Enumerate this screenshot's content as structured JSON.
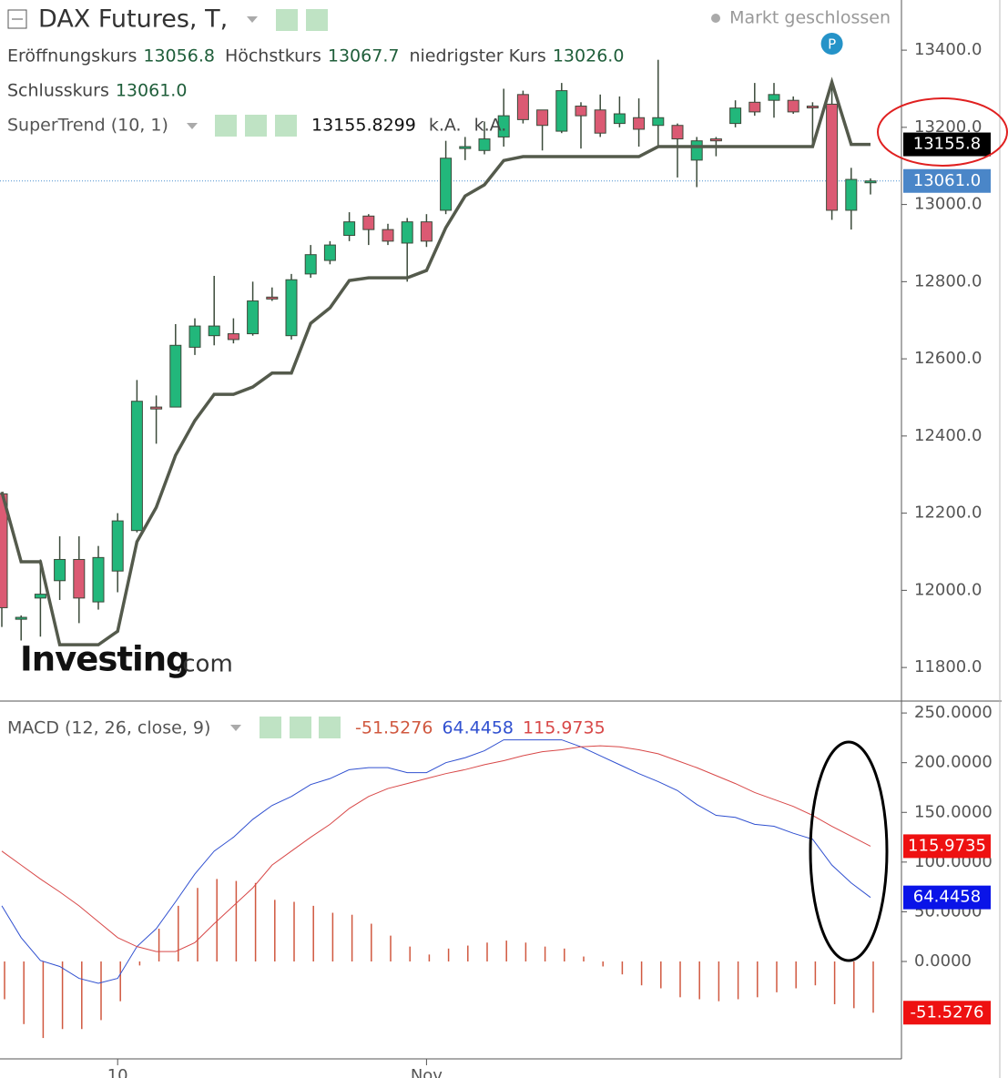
{
  "chart_data": [
    {
      "type": "candlestick",
      "title": "DAX Futures, T,",
      "status": "Markt geschlossen",
      "info": [
        {
          "name": "Eröffnungskurs",
          "value": "13056.8"
        },
        {
          "name": "Höchstkurs",
          "value": "13067.7"
        },
        {
          "name": "niedrigster Kurs",
          "value": "13026.0"
        },
        {
          "name": "Schlusskurs",
          "value": "13061.0"
        }
      ],
      "last_price_label": "13061.0",
      "marker": "P",
      "logo": "Investing",
      "logo_suffix": ".com",
      "categories": [
        null,
        null,
        null,
        null,
        null,
        null,
        "10",
        null,
        null,
        null,
        null,
        null,
        null,
        null,
        null,
        null,
        null,
        null,
        null,
        null,
        null,
        null,
        "Nov",
        null,
        null,
        null,
        null,
        null,
        null,
        null,
        null,
        null,
        null,
        null,
        null,
        null,
        null,
        null,
        null,
        null,
        null,
        null,
        null,
        null,
        null,
        null
      ],
      "open": [
        12250,
        11925,
        11980,
        12025,
        12080,
        11970,
        12050,
        12155,
        12475,
        12475,
        12630,
        12660,
        12665,
        12665,
        12760,
        12660,
        12820,
        12855,
        12920,
        12970,
        12935,
        12900,
        12955,
        12985,
        13145,
        13140,
        13175,
        13285,
        13245,
        13190,
        13255,
        13245,
        13210,
        13225,
        13205,
        13205,
        13115,
        13170,
        13210,
        13265,
        13270,
        13270,
        13255,
        13260,
        12985,
        13056.8
      ],
      "high": [
        12255,
        11935,
        12080,
        12140,
        12140,
        12115,
        12200,
        12545,
        12505,
        12690,
        12705,
        12815,
        12705,
        12800,
        12785,
        12820,
        12895,
        12905,
        12980,
        12975,
        12950,
        12965,
        12975,
        13165,
        13175,
        13215,
        13300,
        13295,
        13245,
        13315,
        13265,
        13285,
        13280,
        13275,
        13375,
        13210,
        13175,
        13175,
        13270,
        13315,
        13315,
        13280,
        13265,
        13320,
        13095,
        13067.7
      ],
      "low": [
        11905,
        11870,
        11880,
        11975,
        11915,
        11950,
        11995,
        12150,
        12380,
        12475,
        12610,
        12635,
        12640,
        12660,
        12750,
        12650,
        12810,
        12845,
        12905,
        12895,
        12895,
        12800,
        12890,
        12975,
        13115,
        13130,
        13150,
        13210,
        13140,
        13185,
        13145,
        13175,
        13200,
        13150,
        13150,
        13070,
        13045,
        13125,
        13200,
        13230,
        13225,
        13235,
        13155,
        12960,
        12935,
        13026
      ],
      "close": [
        11955,
        11930,
        11990,
        12080,
        11980,
        12085,
        12180,
        12490,
        12470,
        12635,
        12685,
        12685,
        12650,
        12750,
        12755,
        12805,
        12870,
        12895,
        12955,
        12935,
        12905,
        12955,
        12905,
        13120,
        13150,
        13170,
        13230,
        13220,
        13205,
        13295,
        13230,
        13185,
        13235,
        13195,
        13225,
        13170,
        13165,
        13165,
        13250,
        13240,
        13285,
        13240,
        13253,
        12985,
        13065,
        13061
      ],
      "up_color": "#22b77b",
      "down_color": "#db5a73",
      "supertrend": {
        "name": "SuperTrend (10, 1)",
        "color": "#545a4c",
        "value_label": "13155.8",
        "na_labels": [
          "k.A.",
          "k.A."
        ],
        "values": [
          12255,
          12074,
          12074,
          11859,
          11859,
          11859,
          11894,
          12126,
          12215,
          12350,
          12440,
          12508,
          12508,
          12527,
          12563,
          12563,
          12692,
          12732,
          12803,
          12810,
          12810,
          12810,
          12829,
          12940,
          13022,
          13051,
          13114,
          13124,
          13124,
          13124,
          13124,
          13124,
          13124,
          13124,
          13150,
          13150,
          13150,
          13150,
          13150,
          13150,
          13150,
          13150,
          13150,
          13317,
          13155.8299,
          13155.8299
        ]
      },
      "ylim": [
        11713,
        13530
      ],
      "yticks": [
        {
          "value": 11800,
          "label": "11800.0"
        },
        {
          "value": 12000,
          "label": "12000.0"
        },
        {
          "value": 12200,
          "label": "12200.0"
        },
        {
          "value": 12400,
          "label": "12400.0"
        },
        {
          "value": 12600,
          "label": "12600.0"
        },
        {
          "value": 12800,
          "label": "12800.0"
        },
        {
          "value": 13000,
          "label": "13000.0"
        },
        {
          "value": 13200,
          "label": "13200.0"
        },
        {
          "value": 13400,
          "label": "13400.0"
        }
      ]
    },
    {
      "type": "macd",
      "title": "MACD (12, 26, close, 9)",
      "series": [
        {
          "kind": "bar",
          "color": "#d0583f",
          "values": [
            -38,
            -63,
            -77,
            -68,
            -68,
            -59,
            -40,
            -4,
            33,
            56,
            74,
            83,
            81,
            79,
            62,
            60,
            56,
            49,
            47,
            38,
            26,
            15,
            7,
            13,
            16,
            19,
            21,
            19,
            15,
            13,
            5,
            -5,
            -13,
            -24,
            -27,
            -36,
            -38,
            -40,
            -38,
            -36,
            -31,
            -27,
            -24,
            -43,
            -47,
            -51.5276
          ]
        },
        {
          "kind": "line",
          "color": "#3050d0",
          "values": [
            56,
            24,
            1,
            -5,
            -17,
            -22,
            -17,
            15,
            33,
            60,
            88,
            111,
            125,
            143,
            157,
            166,
            178,
            184,
            193,
            195,
            195,
            190,
            190,
            200,
            205,
            212,
            223,
            223,
            223,
            223,
            216,
            207,
            198,
            189,
            181,
            172,
            158,
            147,
            145,
            138,
            136,
            129,
            123,
            97,
            79,
            64.4458
          ]
        },
        {
          "kind": "line",
          "color": "#d84848",
          "values": [
            111,
            97,
            83,
            70,
            56,
            40,
            24,
            15,
            10,
            10,
            19,
            38,
            56,
            74,
            97,
            111,
            125,
            138,
            154,
            166,
            174,
            179,
            184,
            189,
            193,
            198,
            202,
            207,
            211,
            213,
            216,
            217,
            216,
            213,
            209,
            202,
            195,
            187,
            179,
            170,
            163,
            156,
            147,
            136,
            126,
            115.9735
          ]
        }
      ],
      "ylim": [
        -98,
        262
      ],
      "yticks": [
        {
          "value": 0,
          "label": "0.0000"
        },
        {
          "value": 50,
          "label": "50.0000"
        },
        {
          "value": 100,
          "label": "100.0000"
        },
        {
          "value": 150,
          "label": "150.0000"
        },
        {
          "value": 200,
          "label": "200.0000"
        },
        {
          "value": 250,
          "label": "250.0000"
        }
      ]
    }
  ]
}
